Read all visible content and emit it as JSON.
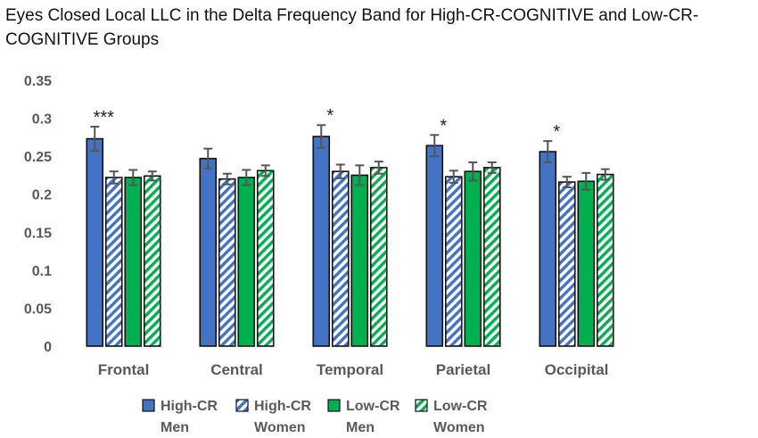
{
  "chart_data": {
    "type": "bar",
    "title": "Eyes Closed Local LLC in the Delta Frequency Band for High-CR-COGNITIVE and Low-CR-COGNITIVE Groups",
    "xlabel": "",
    "ylabel": "",
    "ylim": [
      0,
      0.35
    ],
    "yticks": [
      "0",
      "0.05",
      "0.1",
      "0.15",
      "0.2",
      "0.25",
      "0.3",
      "0.35"
    ],
    "ytick_values": [
      0,
      0.05,
      0.1,
      0.15,
      0.2,
      0.25,
      0.3,
      0.35
    ],
    "grid": false,
    "legend_position": "bottom",
    "categories": [
      "Frontal",
      "Central",
      "Temporal",
      "Parietal",
      "Occipital"
    ],
    "significance": [
      "***",
      "",
      "*",
      "*",
      "*"
    ],
    "series": [
      {
        "name": "High-CR Men",
        "label_line1": "High-CR",
        "label_line2": "Men",
        "color": "#4472C4",
        "pattern": "solid",
        "values": [
          0.273,
          0.247,
          0.276,
          0.264,
          0.256
        ],
        "errors": [
          0.016,
          0.013,
          0.015,
          0.014,
          0.014
        ]
      },
      {
        "name": "High-CR Women",
        "label_line1": "High-CR",
        "label_line2": "Women",
        "color": "#4472C4",
        "pattern": "hatched",
        "values": [
          0.222,
          0.22,
          0.23,
          0.223,
          0.216
        ],
        "errors": [
          0.008,
          0.007,
          0.009,
          0.008,
          0.007
        ]
      },
      {
        "name": "Low-CR Men",
        "label_line1": "Low-CR",
        "label_line2": "Men",
        "color": "#00B050",
        "pattern": "solid",
        "values": [
          0.222,
          0.222,
          0.225,
          0.23,
          0.217
        ],
        "errors": [
          0.01,
          0.01,
          0.013,
          0.012,
          0.011
        ]
      },
      {
        "name": "Low-CR Women",
        "label_line1": "Low-CR",
        "label_line2": "Women",
        "color": "#00B050",
        "pattern": "hatched",
        "values": [
          0.224,
          0.231,
          0.235,
          0.235,
          0.226
        ],
        "errors": [
          0.006,
          0.007,
          0.008,
          0.007,
          0.007
        ]
      }
    ]
  }
}
